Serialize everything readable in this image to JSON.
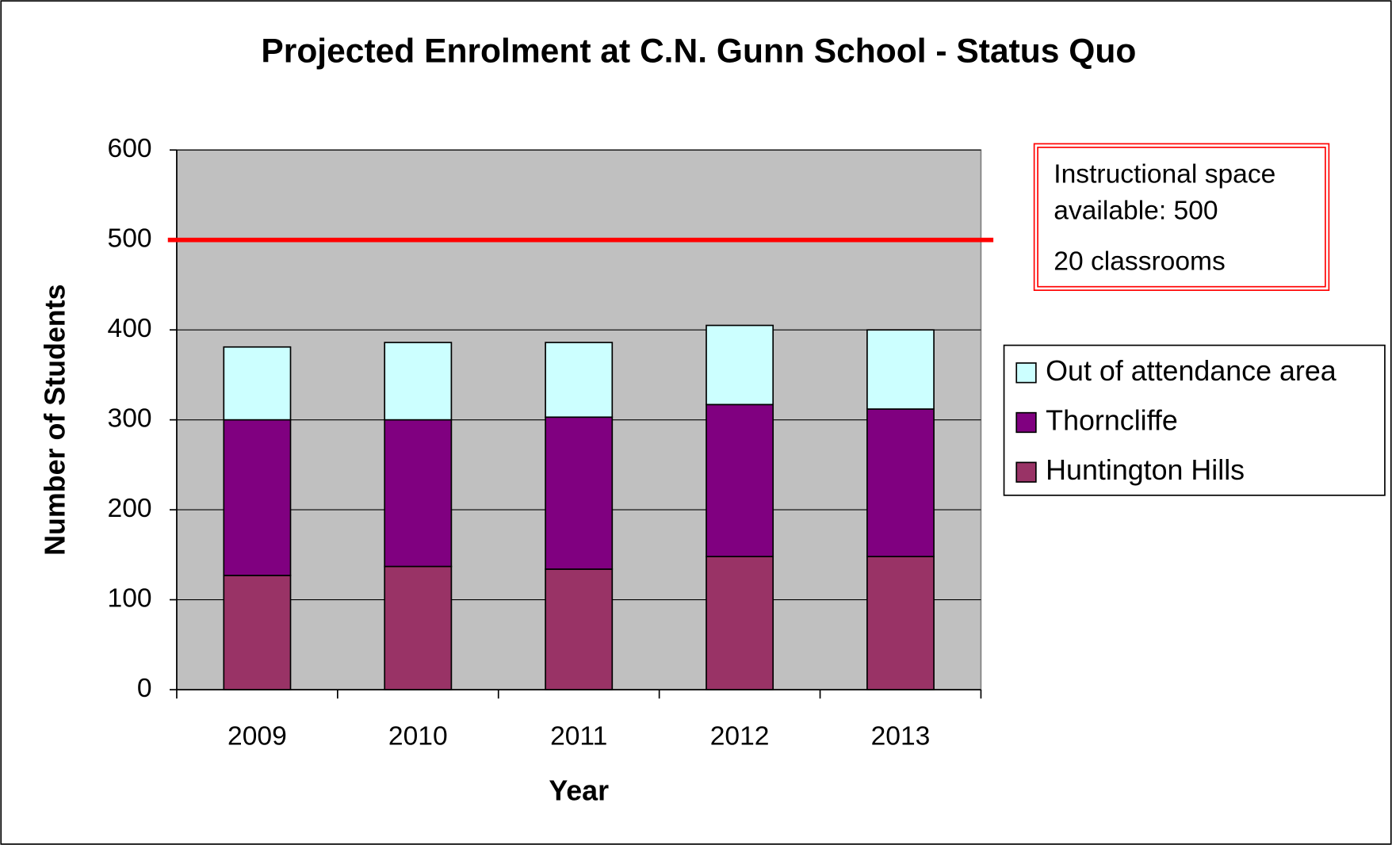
{
  "chart_data": {
    "type": "stacked_bar",
    "title": "Projected Enrolment at C.N. Gunn School - Status Quo",
    "x_label": "Year",
    "y_label": "Number of Students",
    "categories": [
      "2009",
      "2010",
      "2011",
      "2012",
      "2013"
    ],
    "series": [
      {
        "name": "Huntington Hills",
        "color": "#993366",
        "values": [
          127,
          137,
          134,
          148,
          148
        ]
      },
      {
        "name": "Thorncliffe",
        "color": "#800080",
        "values": [
          173,
          163,
          169,
          169,
          164
        ]
      },
      {
        "name": "Out of attendance area",
        "color": "#ccffff",
        "values": [
          81,
          86,
          83,
          88,
          88
        ]
      }
    ],
    "ylim": [
      0,
      600
    ],
    "yticks": [
      0,
      100,
      200,
      300,
      400,
      500,
      600
    ],
    "grid": true,
    "reference_line": {
      "value": 500,
      "color": "#ff0000"
    },
    "annotations": [
      "Instructional space available: 500",
      "20 classrooms"
    ],
    "legend": "right"
  }
}
